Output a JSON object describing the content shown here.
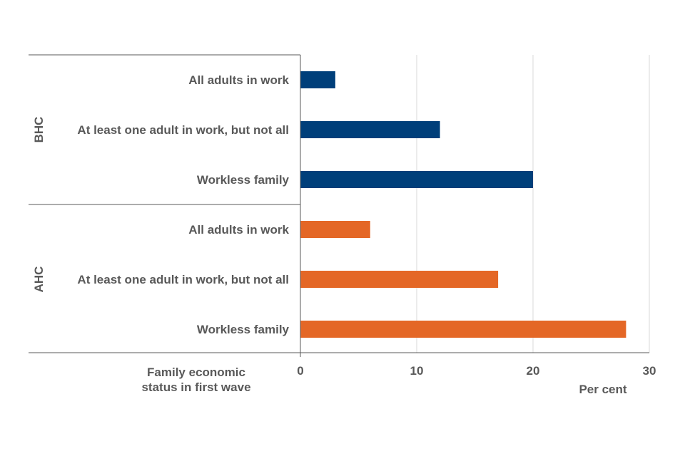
{
  "chart_data": {
    "type": "bar",
    "orientation": "horizontal",
    "groups": [
      {
        "name": "BHC",
        "color": "#003f7a",
        "categories": [
          "All adults in work",
          "At least one adult in work, but not all",
          "Workless family"
        ],
        "values": [
          3,
          12,
          20
        ]
      },
      {
        "name": "AHC",
        "color": "#e46726",
        "categories": [
          "All adults in work",
          "At least one adult in work, but not all",
          "Workless family"
        ],
        "values": [
          6,
          17,
          28
        ]
      }
    ],
    "xlabel": "Per cent",
    "ylabel": [
      "Family economic",
      "status in first wave"
    ],
    "xlim": [
      0,
      30
    ],
    "xticks": [
      "0",
      "10",
      "20",
      "30"
    ],
    "grid": true,
    "gridColor": "#d9d9d9",
    "axisColor": "#595959"
  }
}
